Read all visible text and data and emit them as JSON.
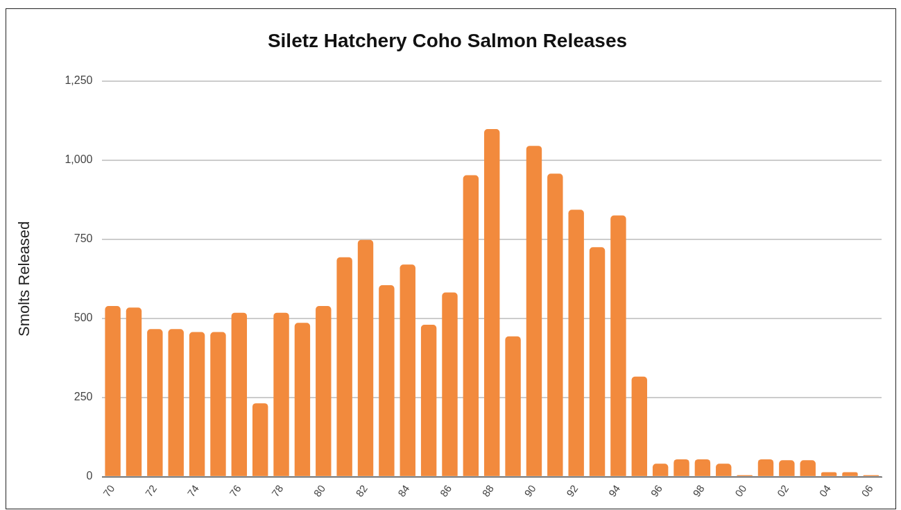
{
  "chart_data": {
    "type": "bar",
    "title": "Siletz Hatchery Coho Salmon Releases",
    "ylabel": "Smolts Released",
    "categories": [
      "70",
      null,
      "72",
      null,
      "74",
      null,
      "76",
      null,
      "78",
      null,
      "80",
      null,
      "82",
      null,
      "84",
      null,
      "86",
      null,
      "88",
      null,
      "90",
      null,
      "92",
      null,
      "94",
      null,
      "96",
      null,
      "98",
      null,
      "00",
      null,
      "02",
      null,
      "04",
      null,
      "06"
    ],
    "values": [
      539,
      534,
      466,
      466,
      457,
      457,
      518,
      232,
      518,
      486,
      539,
      693,
      748,
      605,
      670,
      480,
      582,
      952,
      1098,
      443,
      1045,
      957,
      843,
      725,
      825,
      316,
      41,
      55,
      55,
      41,
      5,
      55,
      52,
      52,
      14,
      14,
      5
    ],
    "color": "#f28a3d",
    "ylim": [
      0,
      1250
    ],
    "yticks": [
      0,
      250,
      500,
      750,
      {
        "value": 1000,
        "label": "1,000"
      },
      {
        "value": 1250,
        "label": "1,250"
      }
    ],
    "grid": "y"
  }
}
